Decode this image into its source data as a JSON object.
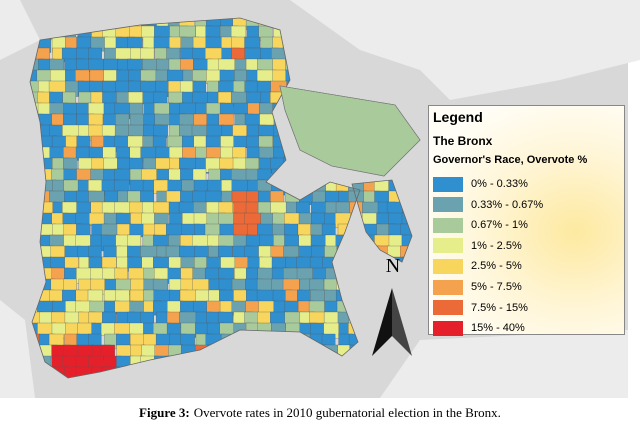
{
  "legend": {
    "title": "Legend",
    "subtitle": "The Bronx",
    "field": "Governor's Race, Overvote %",
    "entries": [
      {
        "label": "0% - 0.33%",
        "color": "#2f8fcf"
      },
      {
        "label": "0.33% - 0.67%",
        "color": "#6aa2b0"
      },
      {
        "label": "0.67% - 1%",
        "color": "#a9ca9b"
      },
      {
        "label": "1% - 2.5%",
        "color": "#e6ee8c"
      },
      {
        "label": "2.5% - 5%",
        "color": "#f8d55c"
      },
      {
        "label": "5% - 7.5%",
        "color": "#f5a24e"
      },
      {
        "label": "7.5% - 15%",
        "color": "#ec6a37"
      },
      {
        "label": "15% - 40%",
        "color": "#e5202b"
      }
    ]
  },
  "north_label": "N",
  "caption": {
    "label": "Figure 3:",
    "text": "Overvote rates in 2010 gubernatorial election in the Bronx."
  }
}
